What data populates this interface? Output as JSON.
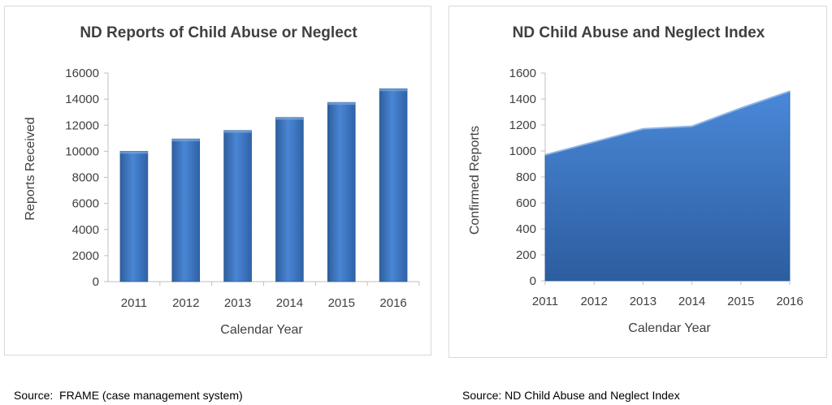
{
  "colors": {
    "bar_fill": "#3a75c4",
    "area_fill": "#3d74c4",
    "axis": "#bfbfbf",
    "text": "#404040"
  },
  "chart_data": [
    {
      "type": "bar",
      "title": "ND Reports of Child Abuse or Neglect",
      "xlabel": "Calendar Year",
      "ylabel": "Reports Received",
      "categories": [
        "2011",
        "2012",
        "2013",
        "2014",
        "2015",
        "2016"
      ],
      "values": [
        10000,
        10950,
        11600,
        12600,
        13750,
        14800
      ],
      "ylim": [
        0,
        16000
      ],
      "yticks": [
        "0",
        "2000",
        "4000",
        "6000",
        "8000",
        "10000",
        "12000",
        "14000",
        "16000"
      ],
      "grid": false,
      "legend": "none"
    },
    {
      "type": "area",
      "title": "ND Child Abuse and Neglect Index",
      "xlabel": "Calendar Year",
      "ylabel": "Confirmed Reports",
      "categories": [
        "2011",
        "2012",
        "2013",
        "2014",
        "2015",
        "2016"
      ],
      "values": [
        970,
        1070,
        1170,
        1190,
        1330,
        1460
      ],
      "ylim": [
        0,
        1600
      ],
      "yticks": [
        "0",
        "200",
        "400",
        "600",
        "800",
        "1000",
        "1200",
        "1400",
        "1600"
      ],
      "grid": false,
      "legend": "none"
    }
  ],
  "sources": {
    "left": "Source:  FRAME (case management system)",
    "right": "Source: ND Child Abuse and Neglect Index"
  }
}
